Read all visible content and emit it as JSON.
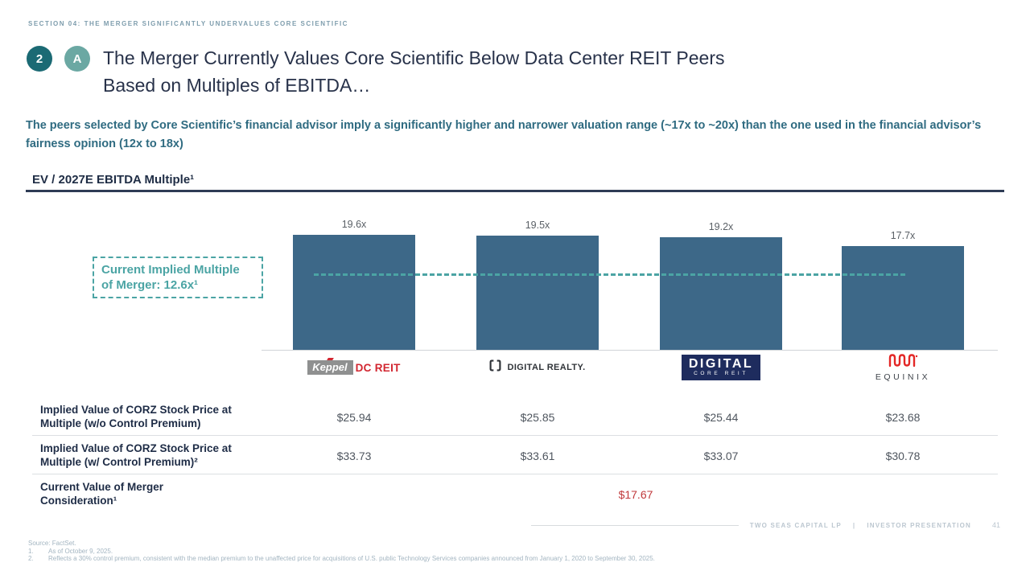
{
  "header": {
    "section_label": "SECTION 04: THE MERGER SIGNIFICANTLY UNDERVALUES CORE SCIENTIFIC",
    "badge_number": "2",
    "badge_letter": "A",
    "title_line1": "The Merger Currently Values Core Scientific Below Data Center REIT Peers",
    "title_line2": "Based on Multiples of EBITDA…",
    "subtitle_line1": "The peers selected by Core Scientific’s financial advisor imply a significantly higher and narrower valuation range (~17x to ~20x) than the one used in the financial advisor’s",
    "subtitle_line2": "fairness opinion (12x to 18x)"
  },
  "chart_data": {
    "type": "bar",
    "title": "EV / 2027E EBITDA Multiple¹",
    "categories": [
      "Keppel DC REIT",
      "Digital Realty",
      "Digital Core REIT",
      "Equinix"
    ],
    "values": [
      19.6,
      19.5,
      19.2,
      17.7
    ],
    "bar_labels": [
      "19.6x",
      "19.5x",
      "19.2x",
      "17.7x"
    ],
    "value_suffix": "x",
    "ylim": [
      0,
      22
    ],
    "grid": false,
    "legend": null,
    "bar_color": "#3d6888",
    "reference_color": "#4ba4a4",
    "reference_line": {
      "value": 12.6,
      "label_line1": "Current Implied Multiple",
      "label_line2": "of Merger: 12.6x¹"
    }
  },
  "logos": {
    "keppel": {
      "name_box": "Keppel",
      "suffix": "DC REIT"
    },
    "digital_realty": {
      "text": "DIGITAL REALTY."
    },
    "digital_core": {
      "line1": "DIGITAL",
      "line2": "CORE REIT"
    },
    "equinix": {
      "text": "EQUINIX"
    }
  },
  "table": {
    "rows": [
      {
        "label_lines": [
          "Implied Value of CORZ Stock Price at",
          "Multiple (w/o Control Premium)"
        ],
        "values": [
          "$25.94",
          "$25.85",
          "$25.44",
          "$23.68"
        ]
      },
      {
        "label_lines": [
          "Implied Value of CORZ Stock Price at",
          "Multiple (w/ Control Premium)²"
        ],
        "values": [
          "$33.73",
          "$33.61",
          "$33.07",
          "$30.78"
        ]
      },
      {
        "label_lines": [
          "Current Value of Merger",
          "Consideration¹"
        ],
        "merged_value": "$17.67"
      }
    ]
  },
  "footnotes": {
    "source": "Source: FactSet.",
    "notes": [
      {
        "num": "1.",
        "text": "As of October 9, 2025."
      },
      {
        "num": "2.",
        "text": "Reflects a 30% control premium, consistent with the median premium to the unaffected price for acquisitions of U.S. public Technology Services companies announced from January 1, 2020 to September 30, 2025."
      }
    ]
  },
  "footer": {
    "brand": "TWO SEAS CAPITAL LP",
    "divider": "|",
    "label": "INVESTOR PRESENTATION",
    "page": "41"
  },
  "colors": {
    "bar": "#3d6888",
    "reference_teal": "#4ba4a4",
    "title_navy": "#28324a",
    "subtitle_teal": "#2f6b81",
    "negative_red": "#c0393b",
    "badge_dark_teal": "#1b6a74",
    "badge_light_teal": "#6ba8a3"
  }
}
